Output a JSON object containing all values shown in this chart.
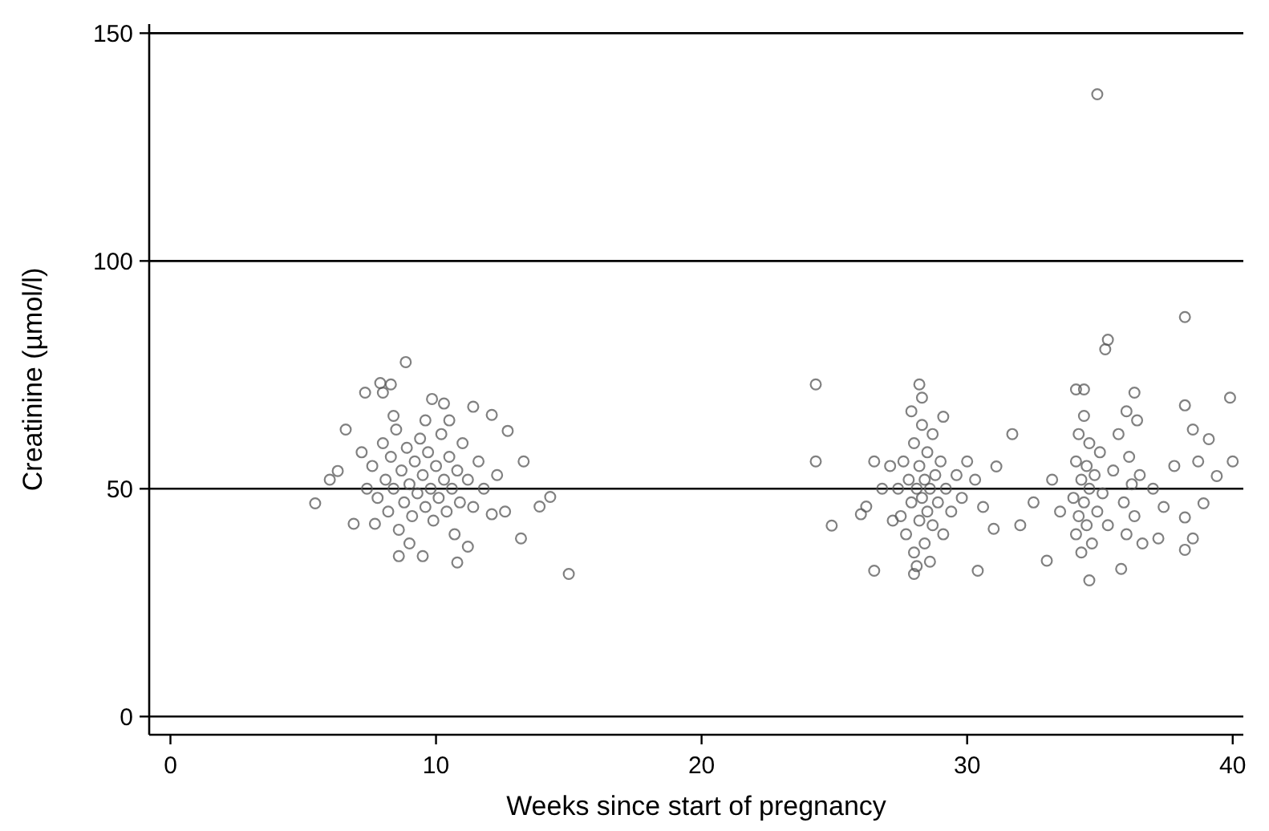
{
  "chart_data": {
    "type": "scatter",
    "xlabel": "Weeks since start of pregnancy",
    "ylabel": "Creatinine (µmol/l)",
    "xlim": [
      -0.8,
      40.4
    ],
    "ylim": [
      -4,
      152
    ],
    "xticks": [
      0,
      10,
      20,
      30,
      40
    ],
    "yticks": [
      0,
      50,
      100,
      150
    ],
    "grid": "y",
    "marker": "circle",
    "series": [
      {
        "color": "#555555",
        "x": [
          8.86,
          7.33,
          7.9,
          8.3,
          8.0,
          9.85,
          10.3,
          11.4,
          12.1,
          12.7,
          6.6,
          6.3,
          6.0,
          5.45,
          6.9,
          13.3,
          14.3,
          13.9,
          13.2,
          15.0,
          8.6,
          9.5,
          10.8,
          11.2,
          12.1,
          7.7,
          7.6,
          7.8,
          8.0,
          8.1,
          8.2,
          8.3,
          8.4,
          8.5,
          8.6,
          8.7,
          8.8,
          8.9,
          9.0,
          9.1,
          9.2,
          9.3,
          9.4,
          9.5,
          9.6,
          9.7,
          9.8,
          9.9,
          10.0,
          10.1,
          10.2,
          10.3,
          10.4,
          10.5,
          10.6,
          10.7,
          10.8,
          10.9,
          11.0,
          11.2,
          11.4,
          11.6,
          9.0,
          9.6,
          8.4,
          10.5,
          11.8,
          7.4,
          7.2,
          12.3,
          12.6,
          24.3,
          24.3,
          24.9,
          26.5,
          28.2,
          28.3,
          29.1,
          31.7,
          31.1,
          30.4,
          31.0,
          26.0,
          26.2,
          26.5,
          28.0,
          27.4,
          27.5,
          27.6,
          27.7,
          27.8,
          27.9,
          28.0,
          28.0,
          28.1,
          28.2,
          28.2,
          28.3,
          28.3,
          28.4,
          28.4,
          28.5,
          28.5,
          28.6,
          28.7,
          28.7,
          28.8,
          28.9,
          29.0,
          29.1,
          29.2,
          29.4,
          29.6,
          28.1,
          28.6,
          27.9,
          29.8,
          30.3,
          30.6,
          30.0,
          26.8,
          27.1,
          27.2,
          34.9,
          38.2,
          35.3,
          35.2,
          34.1,
          34.4,
          36.3,
          39.9,
          38.2,
          38.5,
          39.1,
          40.0,
          38.7,
          39.4,
          38.9,
          38.2,
          38.5,
          38.2,
          37.2,
          33.0,
          34.6,
          35.8,
          34.0,
          34.1,
          34.1,
          34.2,
          34.2,
          34.3,
          34.3,
          34.4,
          34.4,
          34.5,
          34.5,
          34.6,
          34.6,
          34.7,
          34.8,
          34.9,
          35.0,
          35.1,
          35.3,
          35.5,
          35.7,
          35.9,
          36.0,
          36.1,
          36.2,
          36.3,
          36.4,
          36.5,
          36.6,
          36.0,
          37.0,
          37.4,
          37.8,
          33.5,
          33.2,
          32.5,
          32.0
        ],
        "values": [
          77.8,
          71.1,
          73.2,
          72.9,
          71.1,
          69.7,
          68.7,
          68,
          66.2,
          62.7,
          63,
          53.9,
          52,
          46.8,
          42.3,
          56,
          48.2,
          46.1,
          39.1,
          31.3,
          35.2,
          35.2,
          33.8,
          37.3,
          44.4,
          42.3,
          55,
          48,
          60,
          52,
          45,
          57,
          50,
          63,
          41,
          54,
          47,
          59,
          51,
          44,
          56,
          49,
          61,
          53,
          46,
          58,
          50,
          43,
          55,
          48,
          62,
          52,
          45,
          57,
          50,
          40,
          54,
          47,
          60,
          52,
          46,
          56,
          38,
          65,
          66,
          65,
          50,
          50,
          58,
          53,
          45,
          72.9,
          56,
          41.9,
          32,
          72.9,
          70,
          65.8,
          62,
          54.9,
          32,
          41.2,
          44.4,
          46.1,
          56,
          31.3,
          50,
          44,
          56,
          40,
          52,
          47,
          60,
          36,
          50,
          43,
          55,
          48,
          64,
          38,
          52,
          45,
          58,
          50,
          42,
          62,
          53,
          47,
          56,
          40,
          50,
          45,
          53,
          33,
          34,
          67,
          48,
          52,
          46,
          56,
          50,
          55,
          43,
          136.6,
          87.7,
          82.7,
          80.6,
          71.8,
          71.8,
          71.1,
          70,
          68.3,
          63,
          60.9,
          56,
          56,
          52.8,
          46.8,
          43.7,
          39.1,
          36.6,
          39.1,
          34.2,
          29.9,
          32.4,
          48,
          40,
          56,
          44,
          62,
          52,
          36,
          47,
          66,
          55,
          42,
          50,
          60,
          38,
          53,
          45,
          58,
          49,
          42,
          54,
          62,
          47,
          40,
          57,
          51,
          44,
          65,
          53,
          38,
          67,
          50,
          46,
          55,
          45,
          52,
          47,
          42
        ]
      }
    ]
  }
}
